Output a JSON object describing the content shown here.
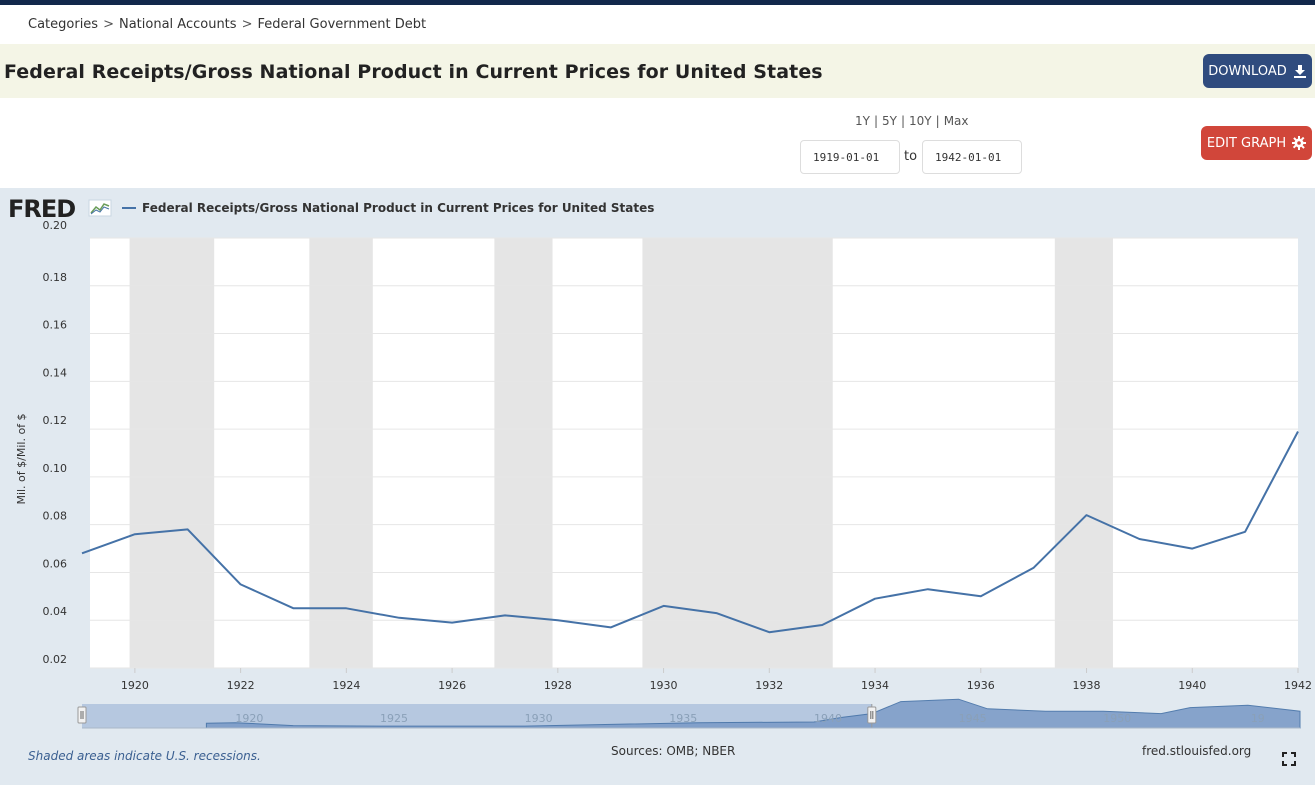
{
  "breadcrumb": {
    "items": [
      "Categories",
      "National Accounts",
      "Federal Government Debt"
    ],
    "separator": ">"
  },
  "page": {
    "title": "Federal Receipts/Gross National Product in Current Prices for United States"
  },
  "buttons": {
    "download_label": "DOWNLOAD",
    "edit_label": "EDIT GRAPH"
  },
  "ranges": {
    "options": [
      "1Y",
      "5Y",
      "10Y",
      "Max"
    ]
  },
  "dates": {
    "start": "1919-01-01",
    "to_label": "to",
    "end": "1942-01-01"
  },
  "brand": {
    "logo_text": "FRED",
    "line_color": "#4572a7",
    "recession_color": "#e5e5e5",
    "panel_color": "#e1e9f0"
  },
  "footer": {
    "note": "Shaded areas indicate U.S. recessions.",
    "sources": "Sources: OMB; NBER",
    "site": "fred.stlouisfed.org"
  },
  "chart_data": {
    "type": "line",
    "ylabel": "Mil. of $/Mil. of $",
    "ylim": [
      0.02,
      0.2
    ],
    "yticks": [
      "0.20",
      "0.18",
      "0.16",
      "0.14",
      "0.12",
      "0.10",
      "0.08",
      "0.06",
      "0.04",
      "0.02"
    ],
    "xlim": [
      1919,
      1942
    ],
    "xticks": [
      "1920",
      "1922",
      "1924",
      "1926",
      "1928",
      "1930",
      "1932",
      "1934",
      "1936",
      "1938",
      "1940",
      "1942"
    ],
    "grid": true,
    "legend": "top-left",
    "series": [
      {
        "name": "Federal Receipts/Gross National Product in Current Prices for United States",
        "x": [
          1919,
          1920,
          1921,
          1922,
          1923,
          1924,
          1925,
          1926,
          1927,
          1928,
          1929,
          1930,
          1931,
          1932,
          1933,
          1934,
          1935,
          1936,
          1937,
          1938,
          1939,
          1940,
          1941,
          1942
        ],
        "values": [
          0.068,
          0.076,
          0.078,
          0.055,
          0.045,
          0.045,
          0.041,
          0.039,
          0.042,
          0.04,
          0.037,
          0.046,
          0.043,
          0.035,
          0.038,
          0.049,
          0.053,
          0.05,
          0.062,
          0.084,
          0.074,
          0.07,
          0.077,
          0.119
        ]
      }
    ],
    "recessions": [
      [
        1919.9,
        1921.5
      ],
      [
        1923.3,
        1924.5
      ],
      [
        1926.8,
        1927.9
      ],
      [
        1929.6,
        1933.2
      ],
      [
        1937.4,
        1938.5
      ]
    ],
    "navigator": {
      "xticks": [
        "1920",
        "1925",
        "1930",
        "1935",
        "1940",
        "1945",
        "1950",
        "19"
      ],
      "selected": [
        1919,
        1942
      ]
    }
  }
}
